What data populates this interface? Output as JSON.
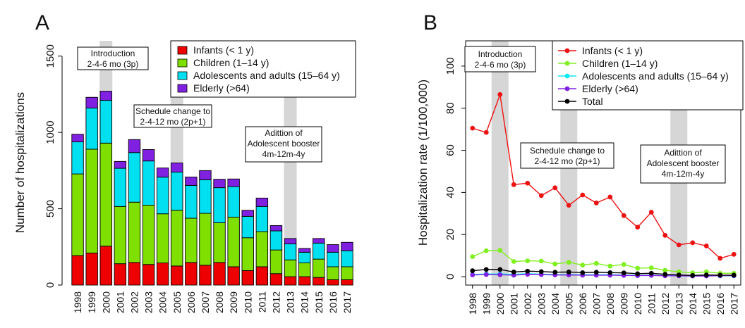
{
  "panels": {
    "a": "A",
    "b": "B"
  },
  "chart_data": [
    {
      "type": "bar",
      "stacked": true,
      "ylabel": "Number of hospitalizations",
      "ylim": [
        0,
        1600
      ],
      "yticks": [
        0,
        500,
        1000,
        1500
      ],
      "categories": [
        "1998",
        "1999",
        "2000",
        "2001",
        "2002",
        "2003",
        "2004",
        "2005",
        "2006",
        "2007",
        "2008",
        "2009",
        "2010",
        "2011",
        "2012",
        "2013",
        "2014",
        "2015",
        "2016",
        "2017"
      ],
      "highlighted_years": [
        "2000",
        "2005",
        "2013"
      ],
      "series": [
        {
          "name": "Infants (< 1 y)",
          "color": "#ee0000",
          "values": [
            193,
            210,
            255,
            140,
            148,
            135,
            145,
            125,
            148,
            130,
            148,
            120,
            95,
            120,
            75,
            55,
            55,
            50,
            35,
            35
          ]
        },
        {
          "name": "Children (1–14 y)",
          "color": "#7fe000",
          "values": [
            535,
            680,
            675,
            375,
            395,
            388,
            322,
            365,
            290,
            340,
            260,
            325,
            215,
            230,
            155,
            110,
            90,
            120,
            85,
            85
          ]
        },
        {
          "name": "Adolescents and adults (15–64 y)",
          "color": "#00e0f0",
          "values": [
            210,
            270,
            280,
            250,
            325,
            290,
            240,
            250,
            215,
            220,
            230,
            200,
            140,
            165,
            125,
            105,
            70,
            105,
            95,
            105
          ]
        },
        {
          "name": "Elderly (>64)",
          "color": "#8020e0",
          "values": [
            50,
            70,
            60,
            45,
            85,
            75,
            60,
            60,
            55,
            60,
            55,
            50,
            40,
            55,
            35,
            35,
            25,
            30,
            50,
            55
          ]
        }
      ],
      "annotations": [
        {
          "at": "2000",
          "lines": [
            "Introduction",
            "2-4-6 mo (3p)"
          ]
        },
        {
          "at": "2005",
          "lines": [
            "Schedule change to",
            "2-4-12 mo (2p+1)"
          ]
        },
        {
          "at": "2013",
          "lines": [
            "Adittion of",
            "Adolescent booster",
            "4m-12m-4y"
          ]
        }
      ],
      "legend": "top-right"
    },
    {
      "type": "line",
      "ylabel": "Hospitalization rate (1/100,000)",
      "ylim": [
        0,
        110
      ],
      "yticks": [
        0,
        20,
        40,
        60,
        80,
        100
      ],
      "categories": [
        "1998",
        "1999",
        "2000",
        "2001",
        "2002",
        "2003",
        "2004",
        "2005",
        "2006",
        "2007",
        "2008",
        "2009",
        "2010",
        "2011",
        "2012",
        "2013",
        "2014",
        "2015",
        "2016",
        "2017"
      ],
      "highlighted_years": [
        "2000",
        "2005",
        "2013"
      ],
      "series": [
        {
          "name": "Infants (< 1 y)",
          "color": "#ee1111",
          "values": [
            70.5,
            68.5,
            86.5,
            43.7,
            44.4,
            38.5,
            42.2,
            33.9,
            38.8,
            35.0,
            37.8,
            29.0,
            23.5,
            30.6,
            19.6,
            15.1,
            16.1,
            14.6,
            8.7,
            10.6
          ]
        },
        {
          "name": "Children (1–14 y)",
          "color": "#80f020",
          "values": [
            9.5,
            12.3,
            12.5,
            7.2,
            7.5,
            7.4,
            6.0,
            6.8,
            5.5,
            6.3,
            5.0,
            5.8,
            4.0,
            4.2,
            3.0,
            2.3,
            1.8,
            2.3,
            1.6,
            1.6
          ]
        },
        {
          "name": "Adolescents and adults (15–64 y)",
          "color": "#10e8f0",
          "values": [
            1.0,
            1.3,
            1.3,
            1.1,
            1.4,
            1.2,
            1.0,
            1.0,
            0.9,
            0.9,
            0.9,
            0.8,
            0.6,
            0.7,
            0.5,
            0.4,
            0.3,
            0.4,
            0.4,
            0.4
          ]
        },
        {
          "name": "Elderly (>64)",
          "color": "#8020e0",
          "values": [
            0.8,
            1.0,
            0.9,
            0.7,
            1.1,
            1.0,
            0.8,
            0.8,
            0.7,
            0.7,
            0.7,
            0.6,
            0.5,
            0.6,
            0.4,
            0.4,
            0.3,
            0.3,
            0.5,
            0.5
          ]
        },
        {
          "name": "Total",
          "color": "#000000",
          "values": [
            2.8,
            3.4,
            3.4,
            2.2,
            2.6,
            2.4,
            2.1,
            2.2,
            1.9,
            2.1,
            1.9,
            1.8,
            1.4,
            1.6,
            1.1,
            0.8,
            0.6,
            0.8,
            0.7,
            0.7
          ]
        }
      ],
      "annotations": [
        {
          "at": "2000",
          "lines": [
            "Introduction",
            "2-4-6 mo (3p)"
          ]
        },
        {
          "at": "2005",
          "lines": [
            "Schedule change to",
            "2-4-12 mo (2p+1)"
          ]
        },
        {
          "at": "2013",
          "lines": [
            "Adittion of",
            "Adolescent booster",
            "4m-12m-4y"
          ]
        }
      ],
      "legend": "top-right"
    }
  ]
}
